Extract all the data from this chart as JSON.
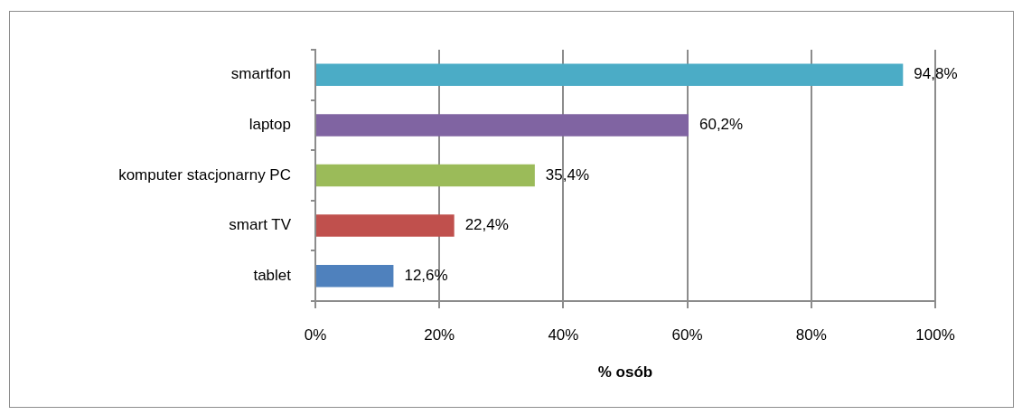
{
  "chart_data": {
    "type": "bar",
    "orientation": "horizontal",
    "xlabel": "% osób",
    "categories": [
      "smartfon",
      "laptop",
      "komputer stacjonarny PC",
      "smart TV",
      "tablet"
    ],
    "values": [
      94.8,
      60.2,
      35.4,
      22.4,
      12.6
    ],
    "colors": [
      "#4bacc6",
      "#8064a2",
      "#9bbb59",
      "#c0504d",
      "#4f81bd"
    ],
    "value_labels": [
      "94,8%",
      "60,2%",
      "35,4%",
      "22,4%",
      "12,6%"
    ],
    "xlim": [
      0,
      100
    ],
    "xticks": [
      {
        "value": 0,
        "label": "0%"
      },
      {
        "value": 20,
        "label": "20%"
      },
      {
        "value": 40,
        "label": "40%"
      },
      {
        "value": 60,
        "label": "60%"
      },
      {
        "value": 80,
        "label": "80%"
      },
      {
        "value": 100,
        "label": "100%"
      }
    ],
    "grid": "x"
  }
}
